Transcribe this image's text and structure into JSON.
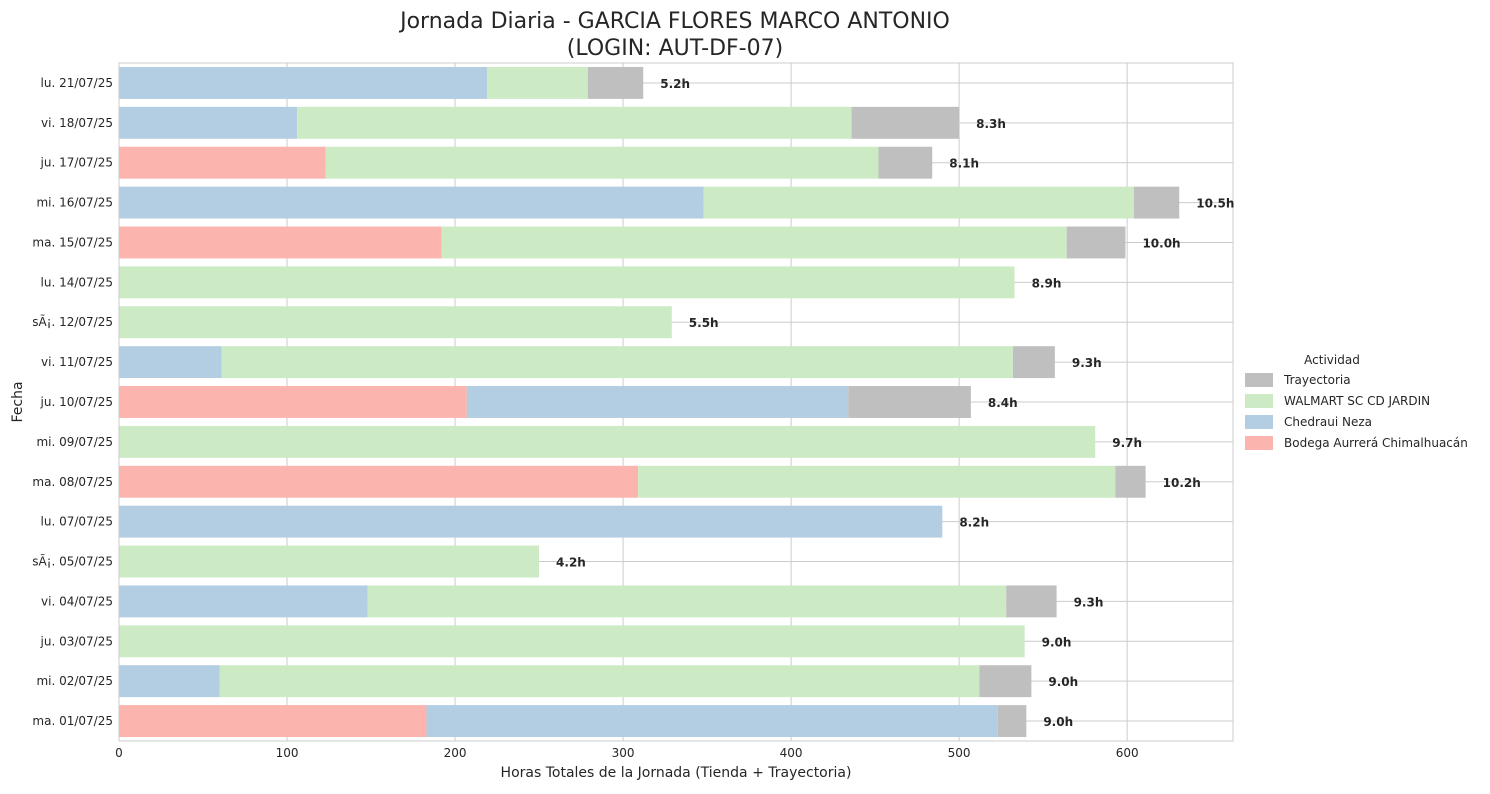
{
  "chart_data": {
    "type": "bar",
    "orientation": "horizontal",
    "stacked": true,
    "title_line1": "Jornada Diaria - GARCIA FLORES MARCO ANTONIO",
    "title_line2": "(LOGIN: AUT-DF-07)",
    "xlabel": "Horas Totales de la Jornada (Tienda + Trayectoria)",
    "ylabel": "Fecha",
    "xlim": [
      0,
      663
    ],
    "xticks": [
      0,
      100,
      200,
      300,
      400,
      500,
      600
    ],
    "grid": true,
    "legend": {
      "title": "Actividad",
      "placement": "outside-right",
      "entries": [
        "Trayectoria",
        "WALMART SC CD JARDIN",
        "Chedraui Neza",
        "Bodega Aurrerá Chimalhuacán"
      ]
    },
    "colors": {
      "Bodega Aurrerá Chimalhuacán": "#fbb4ae",
      "Chedraui Neza": "#b3cde3",
      "WALMART SC CD JARDIN": "#ccebc5",
      "Trayectoria": "#bfbfbf"
    },
    "stack_order": [
      "Bodega Aurrerá Chimalhuacán",
      "Chedraui Neza",
      "WALMART SC CD JARDIN",
      "Trayectoria"
    ],
    "categories": [
      "lu. 21/07/25",
      "vi. 18/07/25",
      "ju. 17/07/25",
      "mi. 16/07/25",
      "ma. 15/07/25",
      "lu. 14/07/25",
      "sÃ¡. 12/07/25",
      "vi. 11/07/25",
      "ju. 10/07/25",
      "mi. 09/07/25",
      "ma. 08/07/25",
      "lu. 07/07/25",
      "sÃ¡. 05/07/25",
      "vi. 04/07/25",
      "ju. 03/07/25",
      "mi. 02/07/25",
      "ma. 01/07/25"
    ],
    "series": [
      {
        "name": "Bodega Aurrerá Chimalhuacán",
        "values": [
          0,
          0,
          123,
          0,
          192,
          0,
          0,
          0,
          207,
          0,
          309,
          0,
          0,
          0,
          0,
          0,
          183
        ]
      },
      {
        "name": "Chedraui Neza",
        "values": [
          219,
          106,
          0,
          348,
          0,
          0,
          0,
          61,
          227,
          0,
          0,
          490,
          0,
          148,
          0,
          60,
          340
        ]
      },
      {
        "name": "WALMART SC CD JARDIN",
        "values": [
          60,
          330,
          329,
          256,
          372,
          533,
          329,
          471,
          0,
          581,
          284,
          0,
          250,
          380,
          539,
          452,
          0
        ]
      },
      {
        "name": "Trayectoria",
        "values": [
          33,
          64,
          32,
          27,
          35,
          0,
          0,
          25,
          73,
          0,
          18,
          0,
          0,
          30,
          0,
          31,
          17
        ]
      }
    ],
    "totals_labels": [
      "5.2h",
      "8.3h",
      "8.1h",
      "10.5h",
      "10.0h",
      "8.9h",
      "5.5h",
      "9.3h",
      "8.4h",
      "9.7h",
      "10.2h",
      "8.2h",
      "4.2h",
      "9.3h",
      "9.0h",
      "9.0h",
      "9.0h"
    ]
  }
}
